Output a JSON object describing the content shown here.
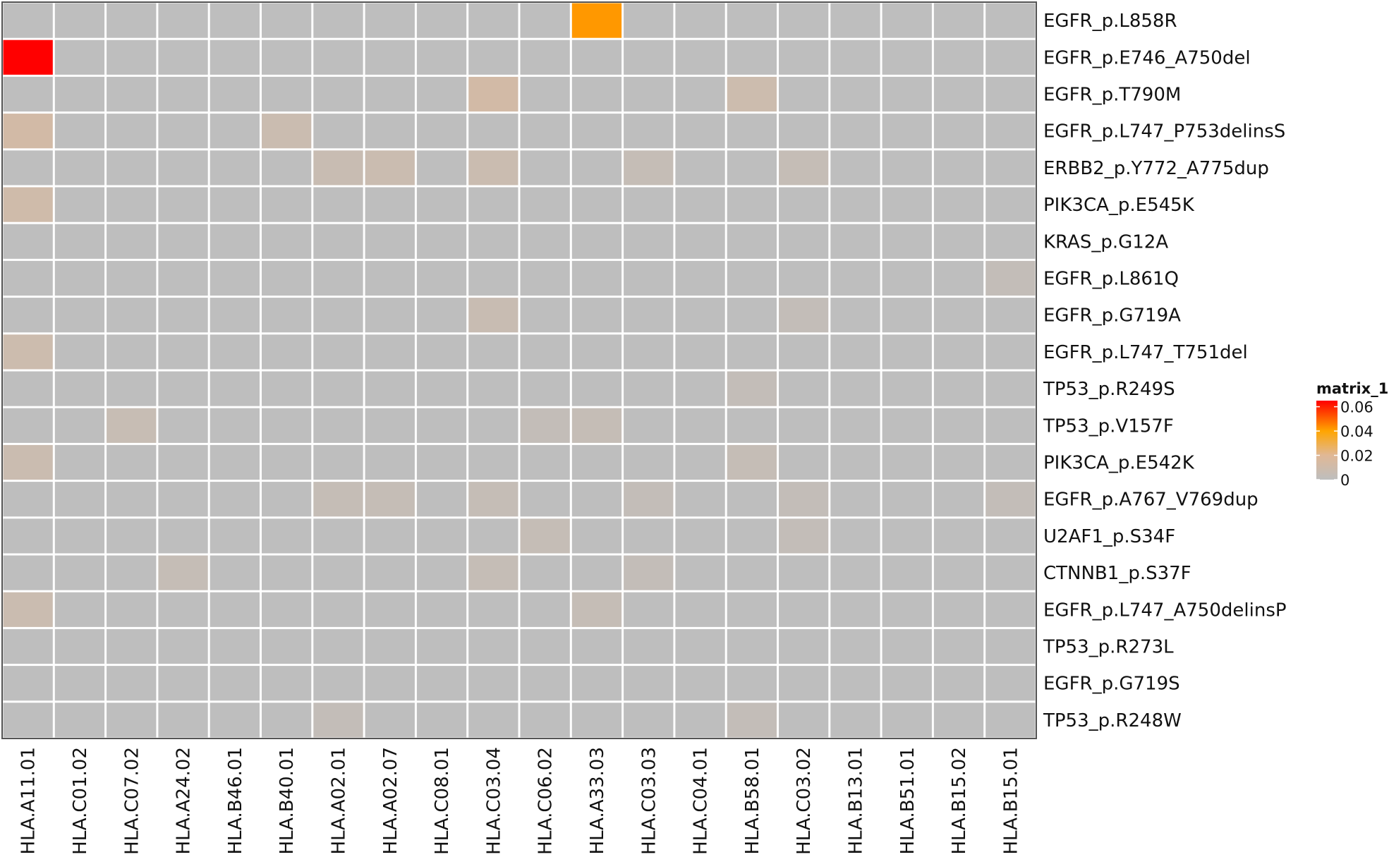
{
  "chart_data": {
    "type": "heatmap",
    "title": "",
    "columns": [
      "HLA.A11.01",
      "HLA.C01.02",
      "HLA.C07.02",
      "HLA.A24.02",
      "HLA.B46.01",
      "HLA.B40.01",
      "HLA.A02.01",
      "HLA.A02.07",
      "HLA.C08.01",
      "HLA.C03.04",
      "HLA.C06.02",
      "HLA.A33.03",
      "HLA.C03.03",
      "HLA.C04.01",
      "HLA.B58.01",
      "HLA.C03.02",
      "HLA.B13.01",
      "HLA.B51.01",
      "HLA.B15.02",
      "HLA.B15.01"
    ],
    "rows": [
      "EGFR_p.L858R",
      "EGFR_p.E746_A750del",
      "EGFR_p.T790M",
      "EGFR_p.L747_P753delinsS",
      "ERBB2_p.Y772_A775dup",
      "PIK3CA_p.E545K",
      "KRAS_p.G12A",
      "EGFR_p.L861Q",
      "EGFR_p.G719A",
      "EGFR_p.L747_T751del",
      "TP53_p.R249S",
      "TP53_p.V157F",
      "PIK3CA_p.E542K",
      "EGFR_p.A767_V769dup",
      "U2AF1_p.S34F",
      "CTNNB1_p.S37F",
      "EGFR_p.L747_A750delinsP",
      "TP53_p.R273L",
      "EGFR_p.G719S",
      "TP53_p.R248W"
    ],
    "values": [
      [
        0,
        0,
        0,
        0,
        0,
        0,
        0,
        0,
        0,
        0,
        0,
        0.042,
        0,
        0,
        0,
        0,
        0,
        0,
        0,
        0
      ],
      [
        0.065,
        0,
        0,
        0,
        0,
        0,
        0,
        0,
        0,
        0,
        0,
        0,
        0,
        0,
        0,
        0,
        0,
        0,
        0,
        0
      ],
      [
        0,
        0,
        0,
        0,
        0,
        0,
        0,
        0,
        0,
        0.012,
        0,
        0,
        0,
        0,
        0.008,
        0,
        0,
        0,
        0,
        0
      ],
      [
        0.012,
        0,
        0,
        0,
        0,
        0.007,
        0,
        0,
        0,
        0,
        0,
        0,
        0,
        0,
        0,
        0,
        0,
        0,
        0,
        0
      ],
      [
        0,
        0,
        0,
        0,
        0,
        0,
        0.006,
        0.007,
        0,
        0.007,
        0,
        0,
        0.004,
        0,
        0,
        0.004,
        0,
        0,
        0,
        0
      ],
      [
        0.01,
        0,
        0,
        0,
        0,
        0,
        0,
        0,
        0,
        0,
        0,
        0,
        0,
        0,
        0,
        0,
        0,
        0,
        0,
        0
      ],
      [
        0,
        0,
        0,
        0,
        0,
        0,
        0,
        0,
        0,
        0,
        0,
        0,
        0,
        0,
        0,
        0,
        0,
        0,
        0,
        0
      ],
      [
        0,
        0,
        0,
        0,
        0,
        0,
        0,
        0,
        0,
        0,
        0,
        0,
        0,
        0,
        0,
        0,
        0,
        0,
        0,
        0.003
      ],
      [
        0,
        0,
        0,
        0,
        0,
        0,
        0,
        0,
        0,
        0.006,
        0,
        0,
        0,
        0,
        0,
        0.003,
        0,
        0,
        0,
        0
      ],
      [
        0.008,
        0,
        0,
        0,
        0,
        0,
        0,
        0,
        0,
        0,
        0,
        0,
        0,
        0,
        0,
        0,
        0,
        0,
        0,
        0
      ],
      [
        0,
        0,
        0,
        0,
        0,
        0,
        0,
        0,
        0,
        0,
        0,
        0,
        0,
        0,
        0.003,
        0,
        0,
        0,
        0,
        0
      ],
      [
        0,
        0,
        0.005,
        0,
        0,
        0,
        0,
        0,
        0,
        0,
        0.003,
        0.004,
        0,
        0,
        0,
        0,
        0,
        0,
        0,
        0
      ],
      [
        0.007,
        0,
        0,
        0,
        0,
        0,
        0,
        0,
        0,
        0,
        0,
        0,
        0,
        0,
        0.004,
        0,
        0,
        0,
        0,
        0
      ],
      [
        0,
        0,
        0,
        0,
        0,
        0,
        0.004,
        0.004,
        0,
        0.004,
        0,
        0,
        0.003,
        0,
        0,
        0.003,
        0,
        0,
        0,
        0.003
      ],
      [
        0,
        0,
        0,
        0,
        0,
        0,
        0,
        0,
        0,
        0,
        0.004,
        0,
        0,
        0,
        0,
        0.003,
        0,
        0,
        0,
        0
      ],
      [
        0,
        0,
        0,
        0.004,
        0,
        0,
        0,
        0,
        0,
        0.004,
        0,
        0,
        0.003,
        0,
        0,
        0,
        0,
        0,
        0,
        0
      ],
      [
        0.007,
        0,
        0,
        0,
        0,
        0,
        0,
        0,
        0,
        0,
        0,
        0.004,
        0,
        0,
        0,
        0,
        0,
        0,
        0,
        0
      ],
      [
        0,
        0,
        0,
        0,
        0,
        0,
        0,
        0,
        0,
        0,
        0,
        0,
        0,
        0,
        0,
        0,
        0,
        0,
        0,
        0
      ],
      [
        0,
        0,
        0,
        0,
        0,
        0,
        0,
        0,
        0,
        0,
        0,
        0,
        0,
        0,
        0,
        0,
        0,
        0,
        0,
        0
      ],
      [
        0,
        0,
        0,
        0,
        0,
        0,
        0.003,
        0,
        0,
        0,
        0,
        0,
        0,
        0,
        0.003,
        0,
        0,
        0,
        0,
        0
      ]
    ],
    "legend": {
      "title": "matrix_1",
      "placement": "right",
      "ticks": [
        0,
        0.02,
        0.04,
        0.06
      ],
      "tick_labels": [
        "0",
        "0.02",
        "0.04",
        "0.06"
      ],
      "range": [
        0,
        0.065
      ],
      "color_stops": [
        {
          "value": 0,
          "color": "#bebebe"
        },
        {
          "value": 0.02,
          "color": "#e0b896"
        },
        {
          "value": 0.04,
          "color": "#ffa500"
        },
        {
          "value": 0.065,
          "color": "#ff0000"
        }
      ]
    },
    "grid": true,
    "grid_color": "#ffffff",
    "border_color": "#555555"
  }
}
